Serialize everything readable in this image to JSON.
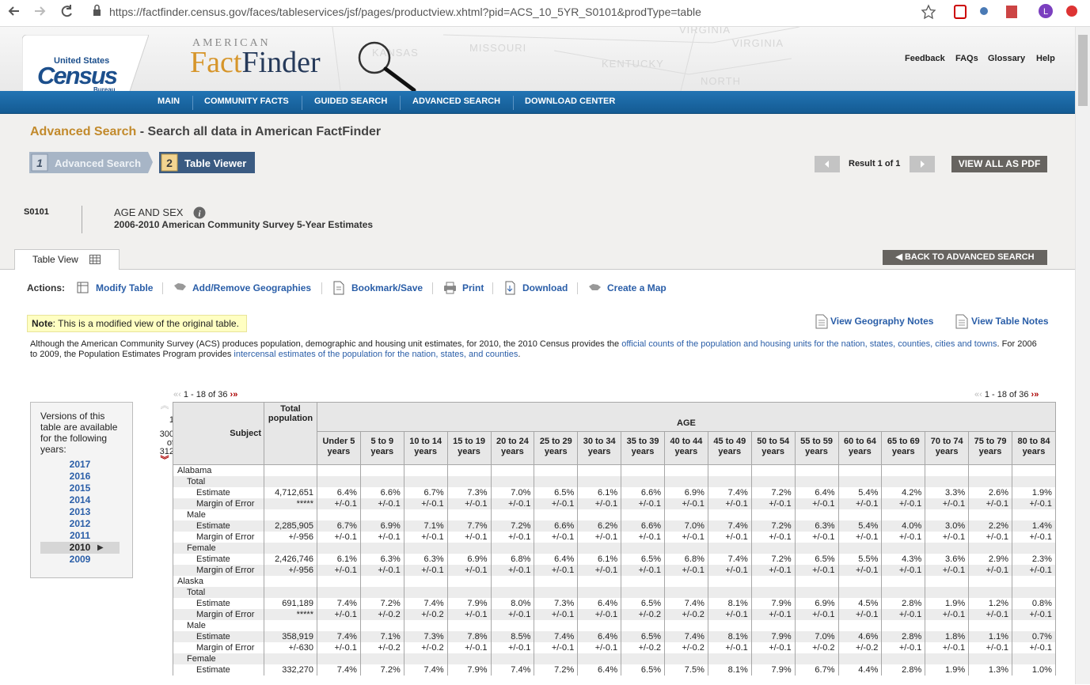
{
  "browser": {
    "url": "https://factfinder.census.gov/faces/tableservices/jsf/pages/productview.xhtml?pid=ACS_10_5YR_S0101&prodType=table",
    "profile": "L"
  },
  "header": {
    "logo": {
      "line1": "United States",
      "line2": "Census",
      "line3": "Bureau"
    },
    "brand": {
      "top": "AMERICAN",
      "part1": "Fact",
      "part2": "Finder"
    },
    "map_labels": [
      "KANSAS",
      "MISSOURI",
      "KENTUCKY",
      "VIRGINIA",
      "VIRGINIA",
      "NORTH"
    ],
    "links": [
      "Feedback",
      "FAQs",
      "Glossary",
      "Help"
    ]
  },
  "nav": [
    "MAIN",
    "COMMUNITY FACTS",
    "GUIDED SEARCH",
    "ADVANCED SEARCH",
    "DOWNLOAD CENTER"
  ],
  "search": {
    "title": "Advanced Search",
    "subtitle": " - Search all data in American FactFinder"
  },
  "steps": [
    {
      "number": "1",
      "label": "Advanced Search"
    },
    {
      "number": "2",
      "label": "Table Viewer"
    }
  ],
  "result": {
    "text": "Result 1 of 1",
    "pdf": "VIEW ALL AS PDF"
  },
  "table_info": {
    "id": "S0101",
    "title": "AGE AND SEX",
    "subtitle": "2006-2010 American Community Survey 5-Year Estimates"
  },
  "tab": "Table View",
  "back": "BACK TO ADVANCED SEARCH",
  "actions": {
    "label": "Actions:",
    "items": [
      "Modify Table",
      "Add/Remove Geographies",
      "Bookmark/Save",
      "Print",
      "Download",
      "Create a Map"
    ]
  },
  "note": {
    "label": "Note",
    "text": ": This is a modified view of the original table."
  },
  "notes_links": [
    "View Geography Notes",
    "View Table Notes"
  ],
  "paragraph": {
    "text1": "Although the American Community Survey (ACS) produces population, demographic and housing unit estimates, for 2010, the 2010 Census provides the ",
    "link1": "official counts of the population and housing units for the nation, states, counties, cities and towns",
    "text2": ". For 2006 to 2009, the Population Estimates Program provides ",
    "link2": "intercensal estimates of the population for the nation, states, and counties",
    "text3": "."
  },
  "pager": "1 - 18 of 36",
  "versions": {
    "text": "Versions of this table are available for the following years:",
    "years": [
      "2017",
      "2016",
      "2015",
      "2014",
      "2013",
      "2012",
      "2011",
      "2010",
      "2009"
    ],
    "current": "2010"
  },
  "row_nav": {
    "first": "1",
    "last": "300",
    "of": "of",
    "total": "312"
  },
  "table": {
    "subject": "Subject",
    "total": "Total population",
    "age": "AGE",
    "age_columns": [
      "Under 5 years",
      "5 to 9 years",
      "10 to 14 years",
      "15 to 19 years",
      "20 to 24 years",
      "25 to 29 years",
      "30 to 34 years",
      "35 to 39 years",
      "40 to 44 years",
      "45 to 49 years",
      "50 to 54 years",
      "55 to 59 years",
      "60 to 64 years",
      "65 to 69 years",
      "70 to 74 years",
      "75 to 79 years",
      "80 to 84 years"
    ],
    "states": [
      {
        "name": "Alabama",
        "groups": [
          {
            "name": "Total",
            "rows": [
              {
                "label": "Estimate",
                "cells": [
                  "4,712,651",
                  "6.4%",
                  "6.6%",
                  "6.7%",
                  "7.3%",
                  "7.0%",
                  "6.5%",
                  "6.1%",
                  "6.6%",
                  "6.9%",
                  "7.4%",
                  "7.2%",
                  "6.4%",
                  "5.4%",
                  "4.2%",
                  "3.3%",
                  "2.6%",
                  "1.9%"
                ]
              },
              {
                "label": "Margin of Error",
                "cells": [
                  "*****",
                  "+/-0.1",
                  "+/-0.1",
                  "+/-0.1",
                  "+/-0.1",
                  "+/-0.1",
                  "+/-0.1",
                  "+/-0.1",
                  "+/-0.1",
                  "+/-0.1",
                  "+/-0.1",
                  "+/-0.1",
                  "+/-0.1",
                  "+/-0.1",
                  "+/-0.1",
                  "+/-0.1",
                  "+/-0.1",
                  "+/-0.1"
                ]
              }
            ]
          },
          {
            "name": "Male",
            "rows": [
              {
                "label": "Estimate",
                "cells": [
                  "2,285,905",
                  "6.7%",
                  "6.9%",
                  "7.1%",
                  "7.7%",
                  "7.2%",
                  "6.6%",
                  "6.2%",
                  "6.6%",
                  "7.0%",
                  "7.4%",
                  "7.2%",
                  "6.3%",
                  "5.4%",
                  "4.0%",
                  "3.0%",
                  "2.2%",
                  "1.4%"
                ]
              },
              {
                "label": "Margin of Error",
                "cells": [
                  "+/-956",
                  "+/-0.1",
                  "+/-0.1",
                  "+/-0.1",
                  "+/-0.1",
                  "+/-0.1",
                  "+/-0.1",
                  "+/-0.1",
                  "+/-0.1",
                  "+/-0.1",
                  "+/-0.1",
                  "+/-0.1",
                  "+/-0.1",
                  "+/-0.1",
                  "+/-0.1",
                  "+/-0.1",
                  "+/-0.1",
                  "+/-0.1"
                ]
              }
            ]
          },
          {
            "name": "Female",
            "rows": [
              {
                "label": "Estimate",
                "cells": [
                  "2,426,746",
                  "6.1%",
                  "6.3%",
                  "6.3%",
                  "6.9%",
                  "6.8%",
                  "6.4%",
                  "6.1%",
                  "6.5%",
                  "6.8%",
                  "7.4%",
                  "7.2%",
                  "6.5%",
                  "5.5%",
                  "4.3%",
                  "3.6%",
                  "2.9%",
                  "2.3%"
                ]
              },
              {
                "label": "Margin of Error",
                "cells": [
                  "+/-956",
                  "+/-0.1",
                  "+/-0.1",
                  "+/-0.1",
                  "+/-0.1",
                  "+/-0.1",
                  "+/-0.1",
                  "+/-0.1",
                  "+/-0.1",
                  "+/-0.1",
                  "+/-0.1",
                  "+/-0.1",
                  "+/-0.1",
                  "+/-0.1",
                  "+/-0.1",
                  "+/-0.1",
                  "+/-0.1",
                  "+/-0.1"
                ]
              }
            ]
          }
        ]
      },
      {
        "name": "Alaska",
        "groups": [
          {
            "name": "Total",
            "rows": [
              {
                "label": "Estimate",
                "cells": [
                  "691,189",
                  "7.4%",
                  "7.2%",
                  "7.4%",
                  "7.9%",
                  "8.0%",
                  "7.3%",
                  "6.4%",
                  "6.5%",
                  "7.4%",
                  "8.1%",
                  "7.9%",
                  "6.9%",
                  "4.5%",
                  "2.8%",
                  "1.9%",
                  "1.2%",
                  "0.8%"
                ]
              },
              {
                "label": "Margin of Error",
                "cells": [
                  "*****",
                  "+/-0.1",
                  "+/-0.2",
                  "+/-0.2",
                  "+/-0.1",
                  "+/-0.1",
                  "+/-0.1",
                  "+/-0.1",
                  "+/-0.2",
                  "+/-0.2",
                  "+/-0.1",
                  "+/-0.1",
                  "+/-0.1",
                  "+/-0.1",
                  "+/-0.1",
                  "+/-0.1",
                  "+/-0.1",
                  "+/-0.1"
                ]
              }
            ]
          },
          {
            "name": "Male",
            "rows": [
              {
                "label": "Estimate",
                "cells": [
                  "358,919",
                  "7.4%",
                  "7.1%",
                  "7.3%",
                  "7.8%",
                  "8.5%",
                  "7.4%",
                  "6.4%",
                  "6.5%",
                  "7.4%",
                  "8.1%",
                  "7.9%",
                  "7.0%",
                  "4.6%",
                  "2.8%",
                  "1.8%",
                  "1.1%",
                  "0.7%"
                ]
              },
              {
                "label": "Margin of Error",
                "cells": [
                  "+/-630",
                  "+/-0.1",
                  "+/-0.2",
                  "+/-0.2",
                  "+/-0.1",
                  "+/-0.1",
                  "+/-0.1",
                  "+/-0.1",
                  "+/-0.2",
                  "+/-0.2",
                  "+/-0.1",
                  "+/-0.1",
                  "+/-0.2",
                  "+/-0.2",
                  "+/-0.1",
                  "+/-0.1",
                  "+/-0.1",
                  "+/-0.1"
                ]
              }
            ]
          },
          {
            "name": "Female",
            "rows": [
              {
                "label": "Estimate",
                "cells": [
                  "332,270",
                  "7.4%",
                  "7.2%",
                  "7.4%",
                  "7.9%",
                  "7.4%",
                  "7.2%",
                  "6.4%",
                  "6.5%",
                  "7.5%",
                  "8.1%",
                  "7.9%",
                  "6.7%",
                  "4.4%",
                  "2.8%",
                  "1.9%",
                  "1.3%",
                  "1.0%"
                ]
              }
            ]
          }
        ]
      }
    ]
  }
}
